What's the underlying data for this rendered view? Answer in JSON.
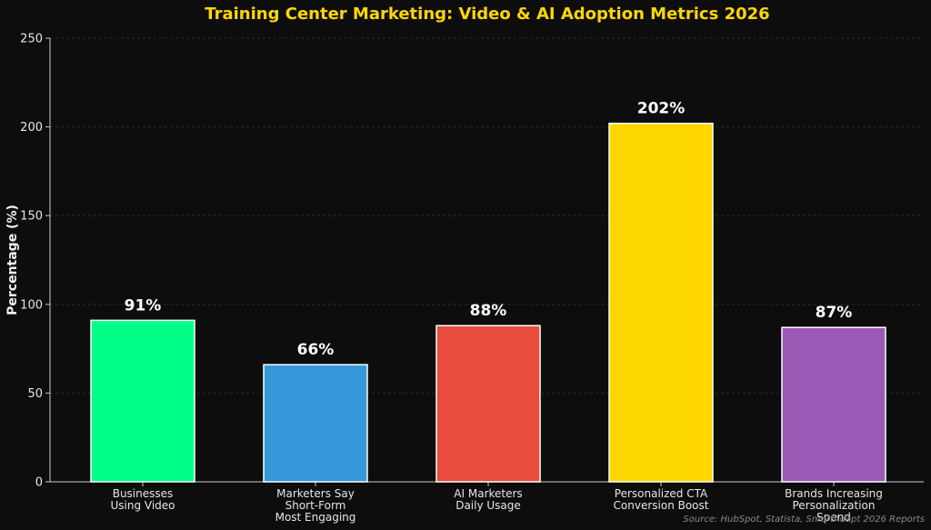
{
  "chart_data": {
    "type": "bar",
    "title": "Training Center Marketing: Video & AI Adoption Metrics 2026",
    "xlabel": "",
    "ylabel": "Percentage (%)",
    "ylim": [
      0,
      250
    ],
    "yticks": [
      0,
      50,
      100,
      150,
      200,
      250
    ],
    "grid": true,
    "categories": [
      [
        "Businesses",
        "Using Video"
      ],
      [
        "Marketers Say",
        "Short-Form",
        "Most Engaging"
      ],
      [
        "AI Marketers",
        "Daily Usage"
      ],
      [
        "Personalized CTA",
        "Conversion Boost"
      ],
      [
        "Brands Increasing",
        "Personalization",
        "Spend"
      ]
    ],
    "values": [
      91,
      66,
      88,
      202,
      87
    ],
    "value_labels": [
      "91%",
      "66%",
      "88%",
      "202%",
      "87%"
    ],
    "colors": [
      "#00ff88",
      "#3498db",
      "#e74c3c",
      "#ffd700",
      "#9b59b6"
    ],
    "title_color": "#ffd700",
    "background": "#0d0d0d",
    "source": "Source: HubSpot, Statista, SmartAdapt 2026 Reports"
  }
}
